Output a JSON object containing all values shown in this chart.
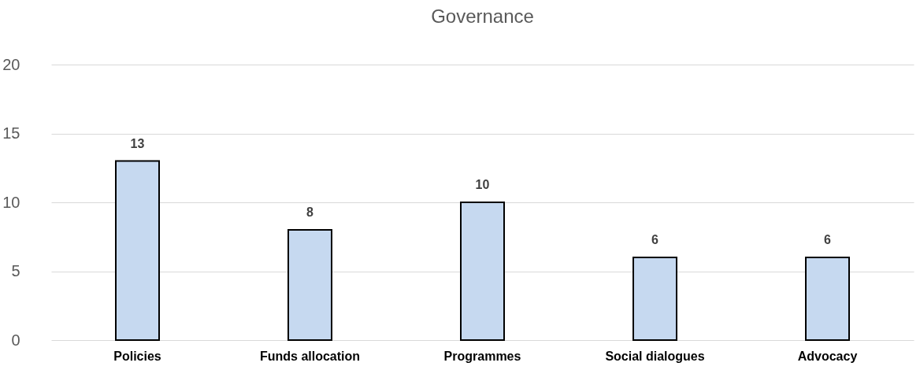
{
  "chart_data": {
    "type": "bar",
    "title": "Governance",
    "categories": [
      "Policies",
      "Funds allocation",
      "Programmes",
      "Social dialogues",
      "Advocacy"
    ],
    "values": [
      13,
      8,
      10,
      6,
      6
    ],
    "color": "#c6d9f0",
    "ylim": [
      0,
      20
    ],
    "yticks": [
      0,
      5,
      10,
      15,
      20
    ],
    "grid": "y",
    "data_labels": true
  }
}
